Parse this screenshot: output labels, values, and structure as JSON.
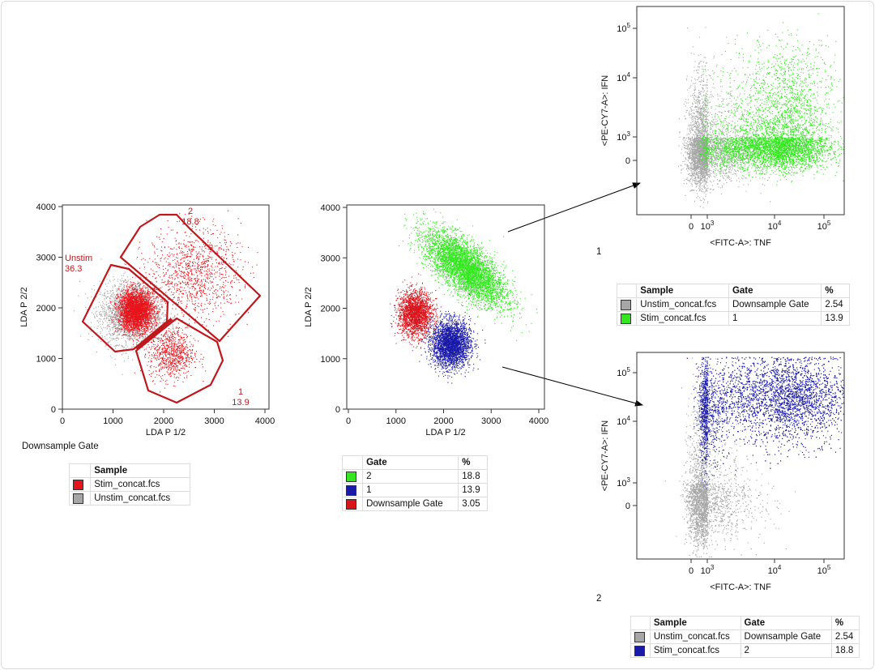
{
  "chart_data": [
    {
      "type": "scatter",
      "xlabel": "LDA P 1/2",
      "ylabel": "LDA P 2/2",
      "xlim": [
        0,
        4000
      ],
      "ylim": [
        0,
        4000
      ],
      "xticks": [
        "0",
        "1000",
        "2000",
        "3000",
        "4000"
      ],
      "yticks": [
        "0",
        "1000",
        "2000",
        "3000",
        "4000"
      ],
      "caption": "Downsample Gate",
      "gates": [
        {
          "name": "Unstim",
          "value": "36.3",
          "color": "#c0171c",
          "vertices": [
            [
              960,
              2848
            ],
            [
              1312,
              2768
            ],
            [
              2080,
              2112
            ],
            [
              2064,
              1728
            ],
            [
              1408,
              1184
            ],
            [
              1040,
              1136
            ],
            [
              400,
              1728
            ]
          ]
        },
        {
          "name": "2",
          "value": "18.8",
          "color": "#c0171c",
          "vertices": [
            [
              2528,
              3552
            ],
            [
              3904,
              2240
            ],
            [
              3104,
              1344
            ],
            [
              1150,
              3000
            ],
            [
              1536,
              3600
            ],
            [
              1920,
              3840
            ],
            [
              2256,
              3840
            ]
          ]
        },
        {
          "name": "1",
          "value": "13.9",
          "color": "#c0171c",
          "vertices": [
            [
              1456,
              1152
            ],
            [
              2256,
              1792
            ],
            [
              3056,
              1328
            ],
            [
              3168,
              960
            ],
            [
              2928,
              480
            ],
            [
              2256,
              128
            ],
            [
              1696,
              368
            ]
          ]
        }
      ],
      "series": [
        {
          "name": "Unstim_concat.fcs",
          "color": "#a6a6a6",
          "clusters": [
            {
              "center": [
                1350,
                1900
              ],
              "sd": [
                300,
                300
              ],
              "n": 2500
            }
          ]
        },
        {
          "name": "Stim_concat.fcs",
          "color": "#e8141b",
          "clusters": [
            {
              "center": [
                1450,
                1950
              ],
              "sd": [
                170,
                200
              ],
              "n": 3000
            },
            {
              "center": [
                2600,
                2700
              ],
              "sd": [
                450,
                450
              ],
              "n": 1100
            },
            {
              "center": [
                2150,
                1100
              ],
              "sd": [
                220,
                250
              ],
              "n": 800
            }
          ]
        }
      ],
      "legend": {
        "header": "Sample",
        "entries": [
          {
            "label": "Stim_concat.fcs",
            "color": "#e8141b"
          },
          {
            "label": "Unstim_concat.fcs",
            "color": "#a6a6a6"
          }
        ]
      }
    },
    {
      "type": "scatter",
      "xlabel": "LDA P 1/2",
      "ylabel": "LDA P 2/2",
      "xlim": [
        0,
        4000
      ],
      "ylim": [
        0,
        4000
      ],
      "xticks": [
        "0",
        "1000",
        "2000",
        "3000",
        "4000"
      ],
      "yticks": [
        "0",
        "1000",
        "2000",
        "3000",
        "4000"
      ],
      "series": [
        {
          "name": "Downsample Gate",
          "color": "#d9141b",
          "clusters": [
            {
              "center": [
                1400,
                1900
              ],
              "sd": [
                180,
                220
              ],
              "n": 2200
            }
          ]
        },
        {
          "name": "2",
          "color": "#33e61f",
          "clusters": [
            {
              "center": [
                2450,
                2800
              ],
              "sd": [
                420,
                260
              ],
              "n": 5000,
              "tilt": -0.6
            }
          ]
        },
        {
          "name": "1",
          "color": "#1a1aa8",
          "clusters": [
            {
              "center": [
                2150,
                1300
              ],
              "sd": [
                200,
                230
              ],
              "n": 3000
            }
          ]
        }
      ],
      "legend": {
        "header_gate": "Gate",
        "header_pct": "%",
        "entries": [
          {
            "label": "2",
            "pct": "18.8",
            "color": "#33e61f"
          },
          {
            "label": "1",
            "pct": "13.9",
            "color": "#1a1aa8"
          },
          {
            "label": "Downsample Gate",
            "pct": "3.05",
            "color": "#d9141b"
          }
        ]
      }
    },
    {
      "type": "scatter",
      "title": "1",
      "xlabel": "<FITC-A>: TNF",
      "ylabel": "<PE-CY7-A>: IFN",
      "scale": "biexponential",
      "xticks": [
        "0",
        "10^3",
        "10^4",
        "10^5"
      ],
      "yticks": [
        "0",
        "10^3",
        "10^4",
        "10^5"
      ],
      "series": [
        {
          "name": "Unstim_concat.fcs",
          "color": "#a6a6a6",
          "clusters": [
            {
              "center": [
                700,
                450
              ],
              "spread_decades": [
                0.4,
                0.6
              ],
              "n": 3500
            }
          ]
        },
        {
          "name": "Stim_concat.fcs",
          "color": "#33e61f",
          "clusters": [
            {
              "center": [
                10000,
                600
              ],
              "spread_decades": [
                0.45,
                0.4
              ],
              "n": 4500
            },
            {
              "center": [
                20000,
                6000
              ],
              "spread_decades": [
                0.4,
                0.4
              ],
              "n": 900
            }
          ]
        }
      ],
      "legend": {
        "headers": [
          "Sample",
          "Gate",
          "%"
        ],
        "rows": [
          {
            "sample": "Unstim_concat.fcs",
            "gate": "Downsample Gate",
            "pct": "2.54",
            "color": "#a6a6a6"
          },
          {
            "sample": "Stim_concat.fcs",
            "gate": "1",
            "pct": "13.9",
            "color": "#33e61f"
          }
        ]
      }
    },
    {
      "type": "scatter",
      "title": "2",
      "xlabel": "<FITC-A>: TNF",
      "ylabel": "<PE-CY7-A>: IFN",
      "scale": "biexponential",
      "xticks": [
        "0",
        "10^3",
        "10^4",
        "10^5"
      ],
      "yticks": [
        "0",
        "10^3",
        "10^4",
        "10^5"
      ],
      "series": [
        {
          "name": "Unstim_concat.fcs",
          "color": "#a6a6a6",
          "clusters": [
            {
              "center": [
                700,
                300
              ],
              "spread_decades": [
                0.4,
                0.8
              ],
              "n": 3500
            }
          ]
        },
        {
          "name": "Stim_concat.fcs",
          "color": "#1a1aa8",
          "clusters": [
            {
              "center": [
                15000,
                30000
              ],
              "spread_decades": [
                0.6,
                0.35
              ],
              "n": 5000
            },
            {
              "center": [
                900,
                15000
              ],
              "spread_decades": [
                0.15,
                0.4
              ],
              "n": 800
            }
          ]
        }
      ],
      "legend": {
        "headers": [
          "Sample",
          "Gate",
          "%"
        ],
        "rows": [
          {
            "sample": "Unstim_concat.fcs",
            "gate": "Downsample Gate",
            "pct": "2.54",
            "color": "#a6a6a6"
          },
          {
            "sample": "Stim_concat.fcs",
            "gate": "2",
            "pct": "18.8",
            "color": "#1a1aa8"
          }
        ]
      }
    }
  ]
}
